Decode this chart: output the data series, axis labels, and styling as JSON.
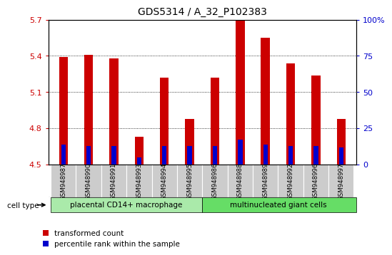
{
  "title": "GDS5314 / A_32_P102383",
  "samples": [
    "GSM948987",
    "GSM948990",
    "GSM948991",
    "GSM948993",
    "GSM948994",
    "GSM948995",
    "GSM948986",
    "GSM948988",
    "GSM948989",
    "GSM948992",
    "GSM948996",
    "GSM948997"
  ],
  "transformed_count": [
    5.39,
    5.41,
    5.38,
    4.73,
    5.22,
    4.88,
    5.22,
    5.7,
    5.55,
    5.34,
    5.24,
    4.88
  ],
  "percentile_rank": [
    14,
    13,
    13,
    5,
    13,
    13,
    13,
    17,
    14,
    13,
    13,
    12
  ],
  "bar_bottom": 4.5,
  "ylim_left": [
    4.5,
    5.7
  ],
  "ylim_right": [
    0,
    100
  ],
  "yticks_left": [
    4.5,
    4.8,
    5.1,
    5.4,
    5.7
  ],
  "yticks_right": [
    0,
    25,
    50,
    75,
    100
  ],
  "ytick_labels_right": [
    "0",
    "25",
    "50",
    "75",
    "100%"
  ],
  "red_color": "#cc0000",
  "blue_color": "#0000cc",
  "group1_label": "placental CD14+ macrophage",
  "group2_label": "multinucleated giant cells",
  "group1_count": 6,
  "group2_count": 6,
  "group1_bg": "#aaeaaa",
  "group2_bg": "#66dd66",
  "sample_bg": "#cccccc",
  "bar_width": 0.35,
  "blue_bar_width": 0.18,
  "legend_red": "transformed count",
  "legend_blue": "percentile rank within the sample",
  "cell_type_label": "cell type"
}
